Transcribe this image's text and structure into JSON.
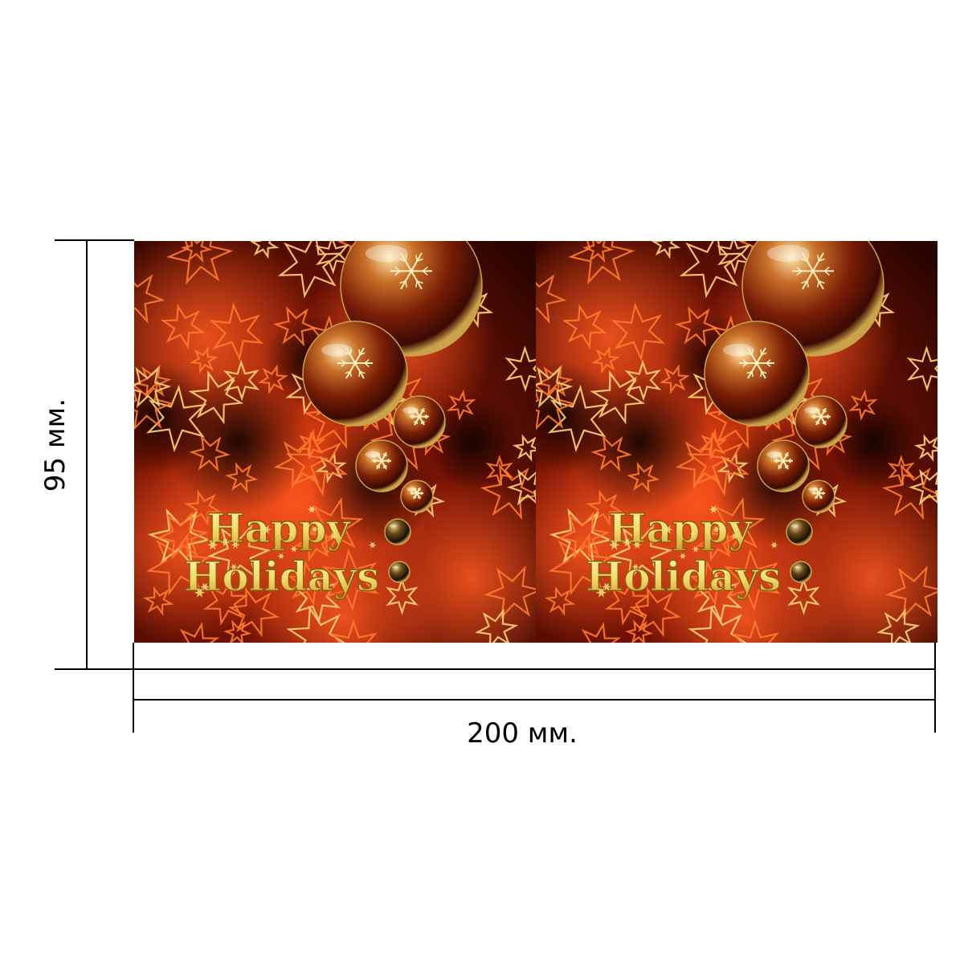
{
  "dimensions": {
    "height_label": "95 мм.",
    "width_label": "200 мм."
  },
  "panels": [
    {
      "line1": "Happy",
      "line2": "Holidays"
    },
    {
      "line1": "Happy",
      "line2": "Holidays"
    }
  ],
  "colors": {
    "background_dark": "#2a0500",
    "glow_orange": "#ff4a10",
    "star_orange": "#ff7a2e",
    "star_yellow": "#ffd27a",
    "text_gold": "#f4e27c",
    "text_outline": "#8a5a10",
    "ornament_gold": "#c9a24a"
  }
}
